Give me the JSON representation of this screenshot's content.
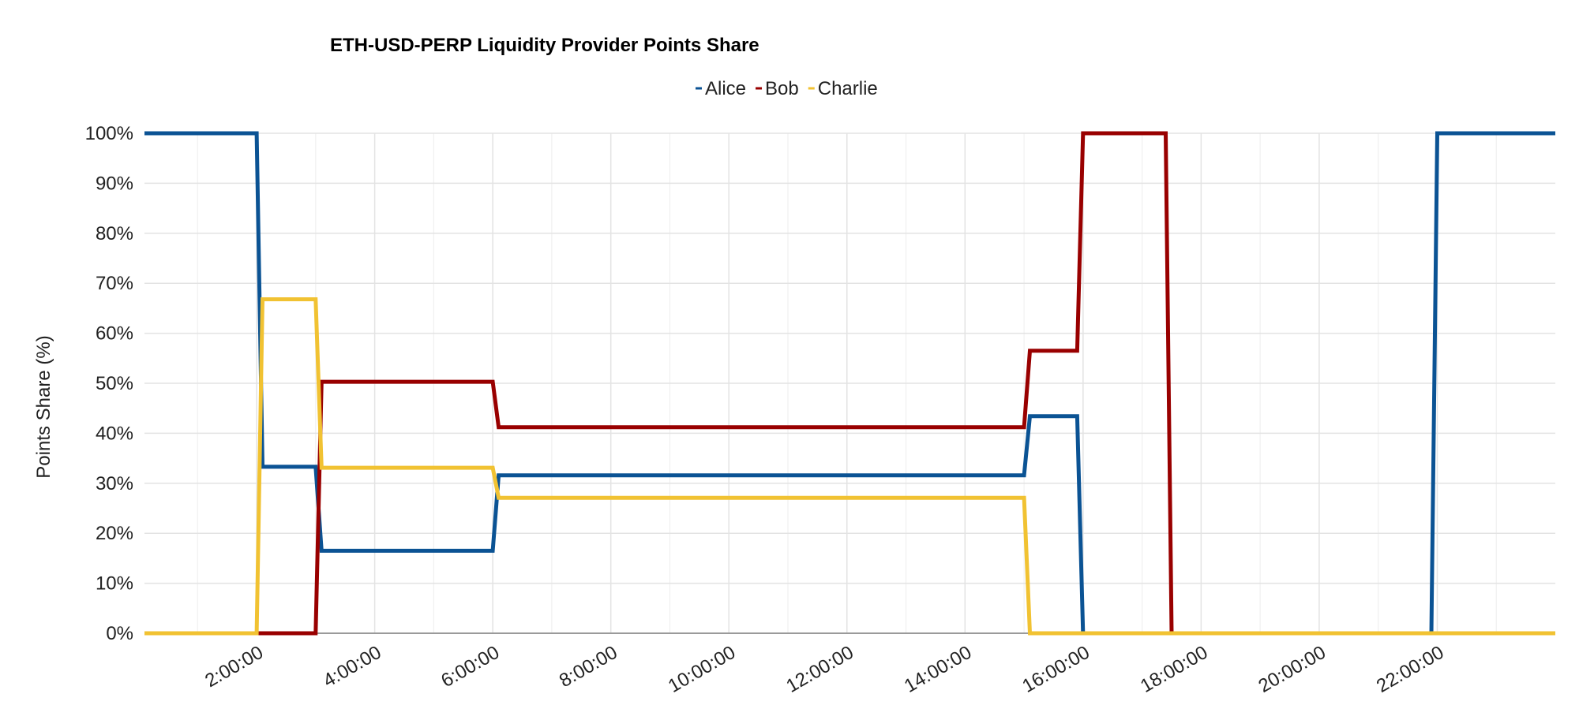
{
  "chart_data": {
    "type": "line",
    "title": "ETH-USD-PERP Liquidity Provider Points Share",
    "xlabel": "",
    "ylabel": "Points Share (%)",
    "x_ticks": [
      "2:00:00",
      "4:00:00",
      "6:00:00",
      "8:00:00",
      "10:00:00",
      "12:00:00",
      "14:00:00",
      "16:00:00",
      "18:00:00",
      "20:00:00",
      "22:00:00"
    ],
    "y_ticks": [
      "0%",
      "10%",
      "20%",
      "30%",
      "40%",
      "50%",
      "60%",
      "70%",
      "80%",
      "90%",
      "100%"
    ],
    "xlim_hours": [
      0.1,
      24.0
    ],
    "ylim": [
      0,
      100
    ],
    "grid": true,
    "legend_position": "top-center",
    "series": [
      {
        "name": "Alice",
        "color": "#0b5394",
        "x_hours": [
          0.1,
          2.0,
          2.1,
          3.0,
          3.1,
          6.0,
          6.1,
          15.0,
          15.1,
          15.9,
          16.0,
          21.9,
          22.0,
          24.0
        ],
        "values": [
          100,
          100,
          33.3,
          33.3,
          16.5,
          16.5,
          31.6,
          31.6,
          43.4,
          43.4,
          0,
          0,
          100,
          100
        ]
      },
      {
        "name": "Bob",
        "color": "#990000",
        "x_hours": [
          0.1,
          3.0,
          3.1,
          6.0,
          6.1,
          15.0,
          15.1,
          15.9,
          16.0,
          17.4,
          17.5,
          24.0
        ],
        "values": [
          0,
          0,
          50.3,
          50.3,
          41.2,
          41.2,
          56.5,
          56.5,
          100,
          100,
          0,
          0
        ]
      },
      {
        "name": "Charlie",
        "color": "#f1c232",
        "x_hours": [
          0.1,
          2.0,
          2.1,
          3.0,
          3.1,
          6.0,
          6.1,
          15.0,
          15.1,
          24.0
        ],
        "values": [
          0,
          0,
          66.8,
          66.8,
          33.1,
          33.1,
          27.1,
          27.1,
          0,
          0
        ]
      }
    ]
  }
}
